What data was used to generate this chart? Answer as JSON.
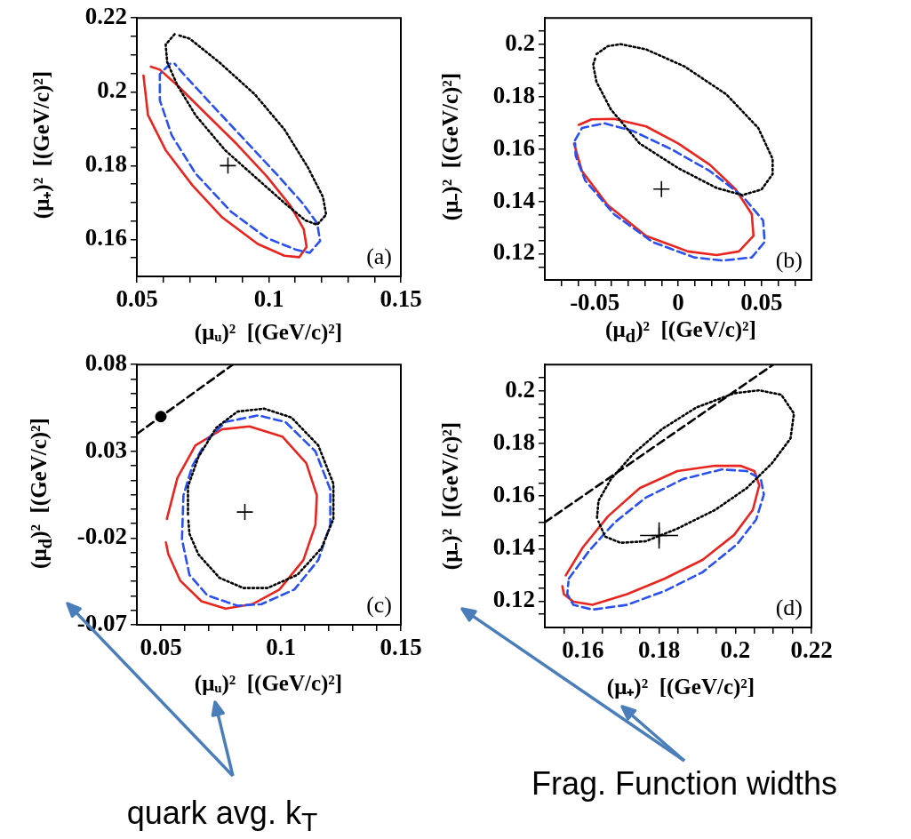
{
  "chart_data": [
    {
      "type": "line",
      "xlabel": "(μᵤ)²  [(GeV/c)²]",
      "ylabel": "(μ₊)²  [(GeV/c)²]",
      "annotations": [
        "(a)"
      ],
      "xlim": [
        0.05,
        0.15
      ],
      "ylim": [
        0.15,
        0.22
      ],
      "xticks": [
        0.05,
        {
          "value": 0.06,
          "label": null
        },
        {
          "value": 0.07,
          "label": null
        },
        {
          "value": 0.08,
          "label": null
        },
        {
          "value": 0.09,
          "label": null
        },
        0.1,
        {
          "value": 0.11,
          "label": null
        },
        {
          "value": 0.12,
          "label": null
        },
        {
          "value": 0.13,
          "label": null
        },
        {
          "value": 0.14,
          "label": null
        },
        0.15
      ],
      "yticks": [
        {
          "value": 0.155,
          "label": null
        },
        0.16,
        {
          "value": 0.165,
          "label": null
        },
        {
          "value": 0.17,
          "label": null
        },
        {
          "value": 0.175,
          "label": null
        },
        0.18,
        {
          "value": 0.185,
          "label": null
        },
        {
          "value": 0.19,
          "label": null
        },
        {
          "value": 0.195,
          "label": null
        },
        0.2,
        {
          "value": 0.205,
          "label": null
        },
        {
          "value": 0.21,
          "label": null
        },
        {
          "value": 0.215,
          "label": null
        },
        0.22
      ],
      "series": [
        {
          "color": "#e8251f",
          "line_style": "solid",
          "x": [
            0.0525,
            0.0542,
            0.0609,
            0.071,
            0.0823,
            0.0958,
            0.1059,
            0.1115,
            0.1143,
            0.1132,
            0.1082,
            0.0992,
            0.0879,
            0.0767,
            0.0654,
            0.0587,
            0.0553
          ],
          "values": [
            0.2044,
            0.1937,
            0.1842,
            0.1747,
            0.166,
            0.1588,
            0.1556,
            0.1552,
            0.158,
            0.1628,
            0.1691,
            0.1771,
            0.1858,
            0.1937,
            0.2017,
            0.206,
            0.2068
          ]
        },
        {
          "color": "#2a50f0",
          "line_style": "dashed",
          "x": [
            0.0626,
            0.0587,
            0.0587,
            0.0632,
            0.0722,
            0.0857,
            0.0992,
            0.1104,
            0.1155,
            0.1194,
            0.1183,
            0.1127,
            0.1037,
            0.0913,
            0.0789,
            0.0677,
            0.0643
          ],
          "values": [
            0.2076,
            0.2048,
            0.1977,
            0.1882,
            0.1779,
            0.1675,
            0.1604,
            0.1572,
            0.1564,
            0.1596,
            0.1644,
            0.1699,
            0.1771,
            0.1866,
            0.1961,
            0.2048,
            0.2076
          ]
        },
        {
          "color": "#000000",
          "line_style": "dotted",
          "x": [
            0.0643,
            0.0609,
            0.0615,
            0.0654,
            0.0722,
            0.0834,
            0.0958,
            0.1059,
            0.1138,
            0.1183,
            0.1217,
            0.1205,
            0.1149,
            0.1059,
            0.0947,
            0.0812,
            0.07,
            0.0654
          ],
          "values": [
            0.2156,
            0.2128,
            0.208,
            0.2017,
            0.1937,
            0.1842,
            0.1763,
            0.1699,
            0.1652,
            0.164,
            0.1667,
            0.1715,
            0.1794,
            0.1898,
            0.1993,
            0.208,
            0.2144,
            0.2154
          ]
        },
        {
          "type": "scatter",
          "marker": "cross",
          "color": "#000000",
          "x": [
            0.0845
          ],
          "values": [
            0.18
          ]
        }
      ]
    },
    {
      "type": "line",
      "xlabel": "(μ$_{d}$)²  [(GeV/c)²]",
      "ylabel": "(μ₋)²  [(GeV/c)²]",
      "annotations": [
        "(b)"
      ],
      "xlim": [
        -0.08,
        0.08
      ],
      "ylim": [
        0.11,
        0.21
      ],
      "xticks": [
        {
          "value": -0.07,
          "label": null
        },
        {
          "value": -0.06,
          "label": null
        },
        -0.05,
        {
          "value": -0.04,
          "label": null
        },
        {
          "value": -0.03,
          "label": null
        },
        {
          "value": -0.02,
          "label": null
        },
        {
          "value": -0.01,
          "label": null
        },
        0,
        {
          "value": 0.01,
          "label": null
        },
        {
          "value": 0.02,
          "label": null
        },
        {
          "value": 0.03,
          "label": null
        },
        {
          "value": 0.04,
          "label": null
        },
        0.05,
        {
          "value": 0.06,
          "label": null
        },
        {
          "value": 0.07,
          "label": null
        }
      ],
      "yticks": [
        {
          "value": 0.115,
          "label": null
        },
        0.12,
        {
          "value": 0.125,
          "label": null
        },
        {
          "value": 0.13,
          "label": null
        },
        {
          "value": 0.135,
          "label": null
        },
        0.14,
        {
          "value": 0.145,
          "label": null
        },
        {
          "value": 0.15,
          "label": null
        },
        {
          "value": 0.155,
          "label": null
        },
        0.16,
        {
          "value": 0.165,
          "label": null
        },
        {
          "value": 0.17,
          "label": null
        },
        {
          "value": 0.175,
          "label": null
        },
        0.18,
        {
          "value": 0.185,
          "label": null
        },
        {
          "value": 0.19,
          "label": null
        },
        {
          "value": 0.195,
          "label": null
        },
        0.2,
        {
          "value": 0.205,
          "label": null
        }
      ],
      "series": [
        {
          "color": "#e8251f",
          "line_style": "solid",
          "x": [
            -0.0625,
            -0.0577,
            -0.0423,
            -0.0192,
            0.0058,
            0.0231,
            0.0365,
            0.0452,
            0.0442,
            0.0346,
            0.0192,
            0,
            -0.0192,
            -0.0385,
            -0.0519,
            -0.0596
          ],
          "values": [
            0.1621,
            0.1515,
            0.1386,
            0.1268,
            0.1209,
            0.1195,
            0.1209,
            0.1268,
            0.1351,
            0.1445,
            0.1539,
            0.1621,
            0.1686,
            0.1715,
            0.1713,
            0.1692
          ]
        },
        {
          "color": "#2a50f0",
          "line_style": "dashed",
          "x": [
            -0.0619,
            -0.0577,
            -0.0442,
            -0.0269,
            -0.0038,
            0.0192,
            0.0385,
            0.051,
            0.0519,
            0.0442,
            0.0269,
            0.0096,
            -0.0154,
            -0.0385,
            -0.0558,
            -0.0615,
            -0.0618
          ],
          "values": [
            0.1633,
            0.168,
            0.1698,
            0.1668,
            0.1598,
            0.1515,
            0.1421,
            0.1327,
            0.1245,
            0.1186,
            0.1174,
            0.1186,
            0.1245,
            0.1351,
            0.148,
            0.1574,
            0.1621
          ]
        },
        {
          "color": "#000000",
          "line_style": "dotted",
          "x": [
            -0.049,
            -0.0423,
            -0.0346,
            -0.0192,
            0.0038,
            0.0288,
            0.0481,
            0.0567,
            0.0567,
            0.05,
            0.0385,
            0.0231,
            0,
            -0.0231,
            -0.0404,
            -0.049,
            -0.051,
            -0.0494
          ],
          "values": [
            0.1962,
            0.1992,
            0.2,
            0.198,
            0.1915,
            0.1809,
            0.168,
            0.1562,
            0.1504,
            0.1445,
            0.1424,
            0.1451,
            0.1527,
            0.1621,
            0.1751,
            0.1856,
            0.1921,
            0.1954
          ]
        },
        {
          "type": "scatter",
          "marker": "cross",
          "color": "#000000",
          "x": [
            -0.01
          ],
          "values": [
            0.1447
          ]
        }
      ]
    },
    {
      "type": "line",
      "xlabel": "(μᵤ)²  [(GeV/c)²]",
      "ylabel": "(μ$_{d}$)²  [(GeV/c)²]",
      "annotations": [
        "(c)",
        "quark avg. k$_{T}$"
      ],
      "xlim": [
        0.04,
        0.15
      ],
      "ylim": [
        -0.07,
        0.08
      ],
      "xticks": [
        0.05,
        {
          "value": 0.06,
          "label": null
        },
        {
          "value": 0.07,
          "label": null
        },
        {
          "value": 0.08,
          "label": null
        },
        {
          "value": 0.09,
          "label": null
        },
        0.1,
        {
          "value": 0.11,
          "label": null
        },
        {
          "value": 0.12,
          "label": null
        },
        {
          "value": 0.13,
          "label": null
        },
        {
          "value": 0.14,
          "label": null
        },
        0.15
      ],
      "yticks": [
        -0.07,
        {
          "value": -0.0617,
          "label": null
        },
        {
          "value": -0.0533,
          "label": null
        },
        {
          "value": -0.045,
          "label": null
        },
        {
          "value": -0.0367,
          "label": null
        },
        {
          "value": -0.0283,
          "label": null
        },
        -0.02,
        {
          "value": -0.0117,
          "label": null
        },
        {
          "value": -0.0033,
          "label": null
        },
        {
          "value": 0.005,
          "label": null
        },
        {
          "value": 0.0133,
          "label": null
        },
        {
          "value": 0.0217,
          "label": null
        },
        0.03,
        {
          "value": 0.0383,
          "label": null
        },
        {
          "value": 0.0467,
          "label": null
        },
        {
          "value": 0.055,
          "label": null
        },
        {
          "value": 0.0633,
          "label": null
        },
        {
          "value": 0.0717,
          "label": null
        },
        0.08
      ],
      "series": [
        {
          "color": "#000000",
          "line_style": "dashed",
          "x": [
            0.04,
            0.08
          ],
          "values": [
            0.04,
            0.08
          ]
        },
        {
          "type": "scatter",
          "marker": "circle",
          "color": "#000000",
          "x": [
            0.05
          ],
          "values": [
            0.05
          ]
        },
        {
          "color": "#e8251f",
          "line_style": "solid",
          "x": [
            0.0525,
            0.0569,
            0.0644,
            0.0756,
            0.0869,
            0.1006,
            0.1106,
            0.115,
            0.1144,
            0.1094,
            0.0994,
            0.0881,
            0.0769,
            0.0669,
            0.0581,
            0.0531,
            0.0521
          ],
          "values": [
            -0.009,
            0.0147,
            0.0334,
            0.0427,
            0.0444,
            0.0385,
            0.0232,
            0.0046,
            -0.0124,
            -0.0327,
            -0.0497,
            -0.0581,
            -0.0607,
            -0.0564,
            -0.0446,
            -0.0293,
            -0.0225
          ]
        },
        {
          "color": "#2a50f0",
          "line_style": "dashed",
          "x": [
            0.0694,
            0.0769,
            0.0906,
            0.1019,
            0.1144,
            0.1206,
            0.1206,
            0.1156,
            0.1056,
            0.0919,
            0.0819,
            0.0694,
            0.0619,
            0.0588,
            0.0594,
            0.0631,
            0.0681
          ],
          "values": [
            0.0368,
            0.0469,
            0.0507,
            0.0469,
            0.03,
            0.008,
            -0.0124,
            -0.0327,
            -0.0497,
            -0.0581,
            -0.059,
            -0.0531,
            -0.0412,
            -0.0208,
            0.0046,
            0.0215,
            0.0337
          ]
        },
        {
          "color": "#000000",
          "line_style": "dotted",
          "x": [
            0.0613,
            0.0613,
            0.0656,
            0.0731,
            0.0819,
            0.0931,
            0.1044,
            0.1156,
            0.1219,
            0.1219,
            0.1169,
            0.1069,
            0.0944,
            0.0844,
            0.0744,
            0.0656,
            0.0619,
            0.0614
          ],
          "values": [
            -0.0064,
            0.0097,
            0.0266,
            0.0436,
            0.0529,
            0.0546,
            0.0495,
            0.0334,
            0.0113,
            -0.009,
            -0.0259,
            -0.0412,
            -0.0488,
            -0.0488,
            -0.0429,
            -0.0293,
            -0.0175,
            -0.0086
          ]
        },
        {
          "type": "scatter",
          "marker": "cross",
          "color": "#000000",
          "x": [
            0.085
          ],
          "values": [
            -0.005
          ]
        }
      ]
    },
    {
      "type": "line",
      "xlabel": "(μ₊)²  [(GeV/c)²]",
      "ylabel": "(μ₋)²  [(GeV/c)²]",
      "annotations": [
        "(d)",
        "Frag. Function widths"
      ],
      "xlim": [
        0.15,
        0.22
      ],
      "ylim": [
        0.11,
        0.21
      ],
      "xticks": [
        {
          "value": 0.155,
          "label": null
        },
        0.16,
        {
          "value": 0.165,
          "label": null
        },
        {
          "value": 0.17,
          "label": null
        },
        {
          "value": 0.175,
          "label": null
        },
        0.18,
        {
          "value": 0.185,
          "label": null
        },
        {
          "value": 0.19,
          "label": null
        },
        {
          "value": 0.195,
          "label": null
        },
        0.2,
        {
          "value": 0.205,
          "label": null
        },
        {
          "value": 0.21,
          "label": null
        },
        {
          "value": 0.215,
          "label": null
        },
        0.22
      ],
      "yticks": [
        {
          "value": 0.115,
          "label": null
        },
        0.12,
        {
          "value": 0.125,
          "label": null
        },
        {
          "value": 0.13,
          "label": null
        },
        {
          "value": 0.135,
          "label": null
        },
        0.14,
        {
          "value": 0.145,
          "label": null
        },
        {
          "value": 0.15,
          "label": null
        },
        {
          "value": 0.155,
          "label": null
        },
        0.16,
        {
          "value": 0.165,
          "label": null
        },
        {
          "value": 0.17,
          "label": null
        },
        {
          "value": 0.175,
          "label": null
        },
        0.18,
        {
          "value": 0.185,
          "label": null
        },
        {
          "value": 0.19,
          "label": null
        },
        {
          "value": 0.195,
          "label": null
        },
        0.2,
        {
          "value": 0.205,
          "label": null
        }
      ],
      "series": [
        {
          "color": "#000000",
          "line_style": "dashed",
          "x": [
            0.15,
            0.21
          ],
          "values": [
            0.15,
            0.21
          ]
        },
        {
          "color": "#e8251f",
          "line_style": "solid",
          "x": [
            0.1555,
            0.16,
            0.1666,
            0.1749,
            0.1848,
            0.1947,
            0.2013,
            0.205,
            0.2063,
            0.2046,
            0.1997,
            0.1914,
            0.1815,
            0.1716,
            0.1625,
            0.1575,
            0.155,
            0.1546
          ],
          "values": [
            0.1298,
            0.1405,
            0.1523,
            0.163,
            0.1695,
            0.1715,
            0.1715,
            0.1695,
            0.1641,
            0.1547,
            0.1452,
            0.1357,
            0.1286,
            0.1227,
            0.1186,
            0.1198,
            0.1227,
            0.1257
          ]
        },
        {
          "color": "#2a50f0",
          "line_style": "dashed",
          "x": [
            0.1563,
            0.1617,
            0.1683,
            0.1765,
            0.1864,
            0.1964,
            0.203,
            0.2067,
            0.2075,
            0.2055,
            0.2005,
            0.1914,
            0.1815,
            0.1716,
            0.1625,
            0.1575,
            0.1559,
            0.1562
          ],
          "values": [
            0.1286,
            0.1393,
            0.1499,
            0.1594,
            0.1665,
            0.1701,
            0.1695,
            0.1665,
            0.1606,
            0.1511,
            0.1417,
            0.131,
            0.1239,
            0.1186,
            0.1168,
            0.1186,
            0.1227,
            0.1274
          ]
        },
        {
          "color": "#000000",
          "line_style": "dotted",
          "x": [
            0.1637,
            0.1641,
            0.1674,
            0.1732,
            0.1807,
            0.1898,
            0.1997,
            0.2063,
            0.2121,
            0.2154,
            0.2145,
            0.2096,
            0.203,
            0.1947,
            0.1848,
            0.1765,
            0.1699,
            0.1658,
            0.1641
          ],
          "values": [
            0.1517,
            0.1582,
            0.1665,
            0.176,
            0.1854,
            0.1937,
            0.1991,
            0.2002,
            0.1985,
            0.1914,
            0.1819,
            0.1724,
            0.163,
            0.1547,
            0.1476,
            0.1428,
            0.1422,
            0.1446,
            0.1503
          ]
        },
        {
          "type": "scatter",
          "marker": "cross",
          "color": "#000000",
          "x": [
            0.18
          ],
          "values": [
            0.145
          ],
          "errors": [
            0.005
          ],
          "xerrors": [
            0.005
          ]
        }
      ]
    }
  ]
}
